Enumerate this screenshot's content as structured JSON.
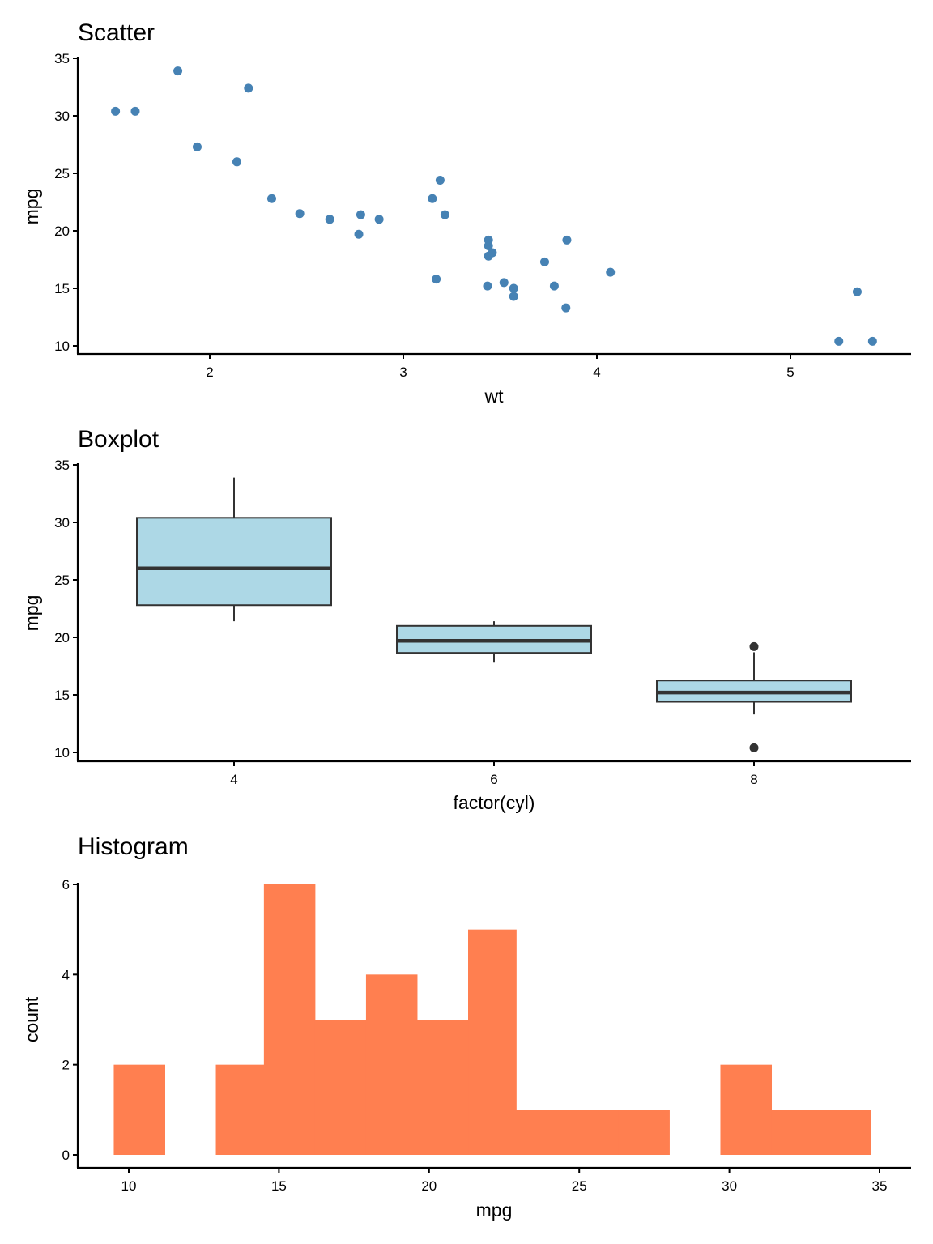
{
  "chart_data": [
    {
      "type": "scatter",
      "title": "Scatter",
      "xlabel": "wt",
      "ylabel": "mpg",
      "xlim": [
        1.32,
        5.62
      ],
      "ylim": [
        9.3,
        35.0
      ],
      "xticks": [
        2,
        3,
        4,
        5
      ],
      "yticks": [
        10,
        15,
        20,
        25,
        30,
        35
      ],
      "grid": false,
      "point_color": "#4682B4",
      "points": [
        {
          "x": 2.62,
          "y": 21.0
        },
        {
          "x": 2.875,
          "y": 21.0
        },
        {
          "x": 2.32,
          "y": 22.8
        },
        {
          "x": 3.215,
          "y": 21.4
        },
        {
          "x": 3.44,
          "y": 18.7
        },
        {
          "x": 3.46,
          "y": 18.1
        },
        {
          "x": 3.57,
          "y": 14.3
        },
        {
          "x": 3.19,
          "y": 24.4
        },
        {
          "x": 3.15,
          "y": 22.8
        },
        {
          "x": 3.44,
          "y": 19.2
        },
        {
          "x": 3.44,
          "y": 17.8
        },
        {
          "x": 4.07,
          "y": 16.4
        },
        {
          "x": 3.73,
          "y": 17.3
        },
        {
          "x": 3.78,
          "y": 15.2
        },
        {
          "x": 5.25,
          "y": 10.4
        },
        {
          "x": 5.424,
          "y": 10.4
        },
        {
          "x": 5.345,
          "y": 14.7
        },
        {
          "x": 2.2,
          "y": 32.4
        },
        {
          "x": 1.615,
          "y": 30.4
        },
        {
          "x": 1.835,
          "y": 33.9
        },
        {
          "x": 2.465,
          "y": 21.5
        },
        {
          "x": 3.52,
          "y": 15.5
        },
        {
          "x": 3.435,
          "y": 15.2
        },
        {
          "x": 3.84,
          "y": 13.3
        },
        {
          "x": 3.845,
          "y": 19.2
        },
        {
          "x": 1.935,
          "y": 27.3
        },
        {
          "x": 2.14,
          "y": 26.0
        },
        {
          "x": 1.513,
          "y": 30.4
        },
        {
          "x": 3.17,
          "y": 15.8
        },
        {
          "x": 2.77,
          "y": 19.7
        },
        {
          "x": 3.57,
          "y": 15.0
        },
        {
          "x": 2.78,
          "y": 21.4
        }
      ]
    },
    {
      "type": "box",
      "title": "Boxplot",
      "xlabel": "factor(cyl)",
      "ylabel": "mpg",
      "ylim": [
        9.3,
        35.0
      ],
      "yticks": [
        10,
        15,
        20,
        25,
        30,
        35
      ],
      "categories": [
        "4",
        "6",
        "8"
      ],
      "fill_color": "#ADD8E6",
      "line_color": "#333333",
      "boxes": [
        {
          "category": "4",
          "lower_whisker": 21.4,
          "q1": 22.8,
          "median": 26.0,
          "q3": 30.4,
          "upper_whisker": 33.9,
          "outliers": []
        },
        {
          "category": "6",
          "lower_whisker": 17.8,
          "q1": 18.65,
          "median": 19.7,
          "q3": 21.0,
          "upper_whisker": 21.4,
          "outliers": []
        },
        {
          "category": "8",
          "lower_whisker": 13.3,
          "q1": 14.4,
          "median": 15.2,
          "q3": 16.25,
          "upper_whisker": 18.7,
          "outliers": [
            19.2,
            10.4
          ]
        }
      ]
    },
    {
      "type": "bar",
      "subtype": "histogram",
      "title": "Histogram",
      "xlabel": "mpg",
      "ylabel": "count",
      "xlim": [
        8.4,
        36.2
      ],
      "ylim": [
        -0.3,
        6.3
      ],
      "xticks": [
        10,
        15,
        20,
        25,
        30,
        35
      ],
      "yticks": [
        0,
        2,
        4,
        6
      ],
      "fill_color": "#FF7F50",
      "bins": [
        {
          "x0": 9.5,
          "x1": 11.2,
          "count": 2
        },
        {
          "x0": 11.2,
          "x1": 12.9,
          "count": 0
        },
        {
          "x0": 12.9,
          "x1": 14.5,
          "count": 2
        },
        {
          "x0": 14.5,
          "x1": 16.2,
          "count": 6
        },
        {
          "x0": 16.2,
          "x1": 17.9,
          "count": 3
        },
        {
          "x0": 17.9,
          "x1": 19.6,
          "count": 4
        },
        {
          "x0": 19.6,
          "x1": 21.3,
          "count": 3
        },
        {
          "x0": 21.3,
          "x1": 22.9,
          "count": 5
        },
        {
          "x0": 22.9,
          "x1": 24.6,
          "count": 1
        },
        {
          "x0": 24.6,
          "x1": 26.3,
          "count": 1
        },
        {
          "x0": 26.3,
          "x1": 28.0,
          "count": 1
        },
        {
          "x0": 28.0,
          "x1": 29.7,
          "count": 0
        },
        {
          "x0": 29.7,
          "x1": 31.4,
          "count": 2
        },
        {
          "x0": 31.4,
          "x1": 33.0,
          "count": 1
        },
        {
          "x0": 33.0,
          "x1": 34.7,
          "count": 1
        }
      ]
    }
  ]
}
